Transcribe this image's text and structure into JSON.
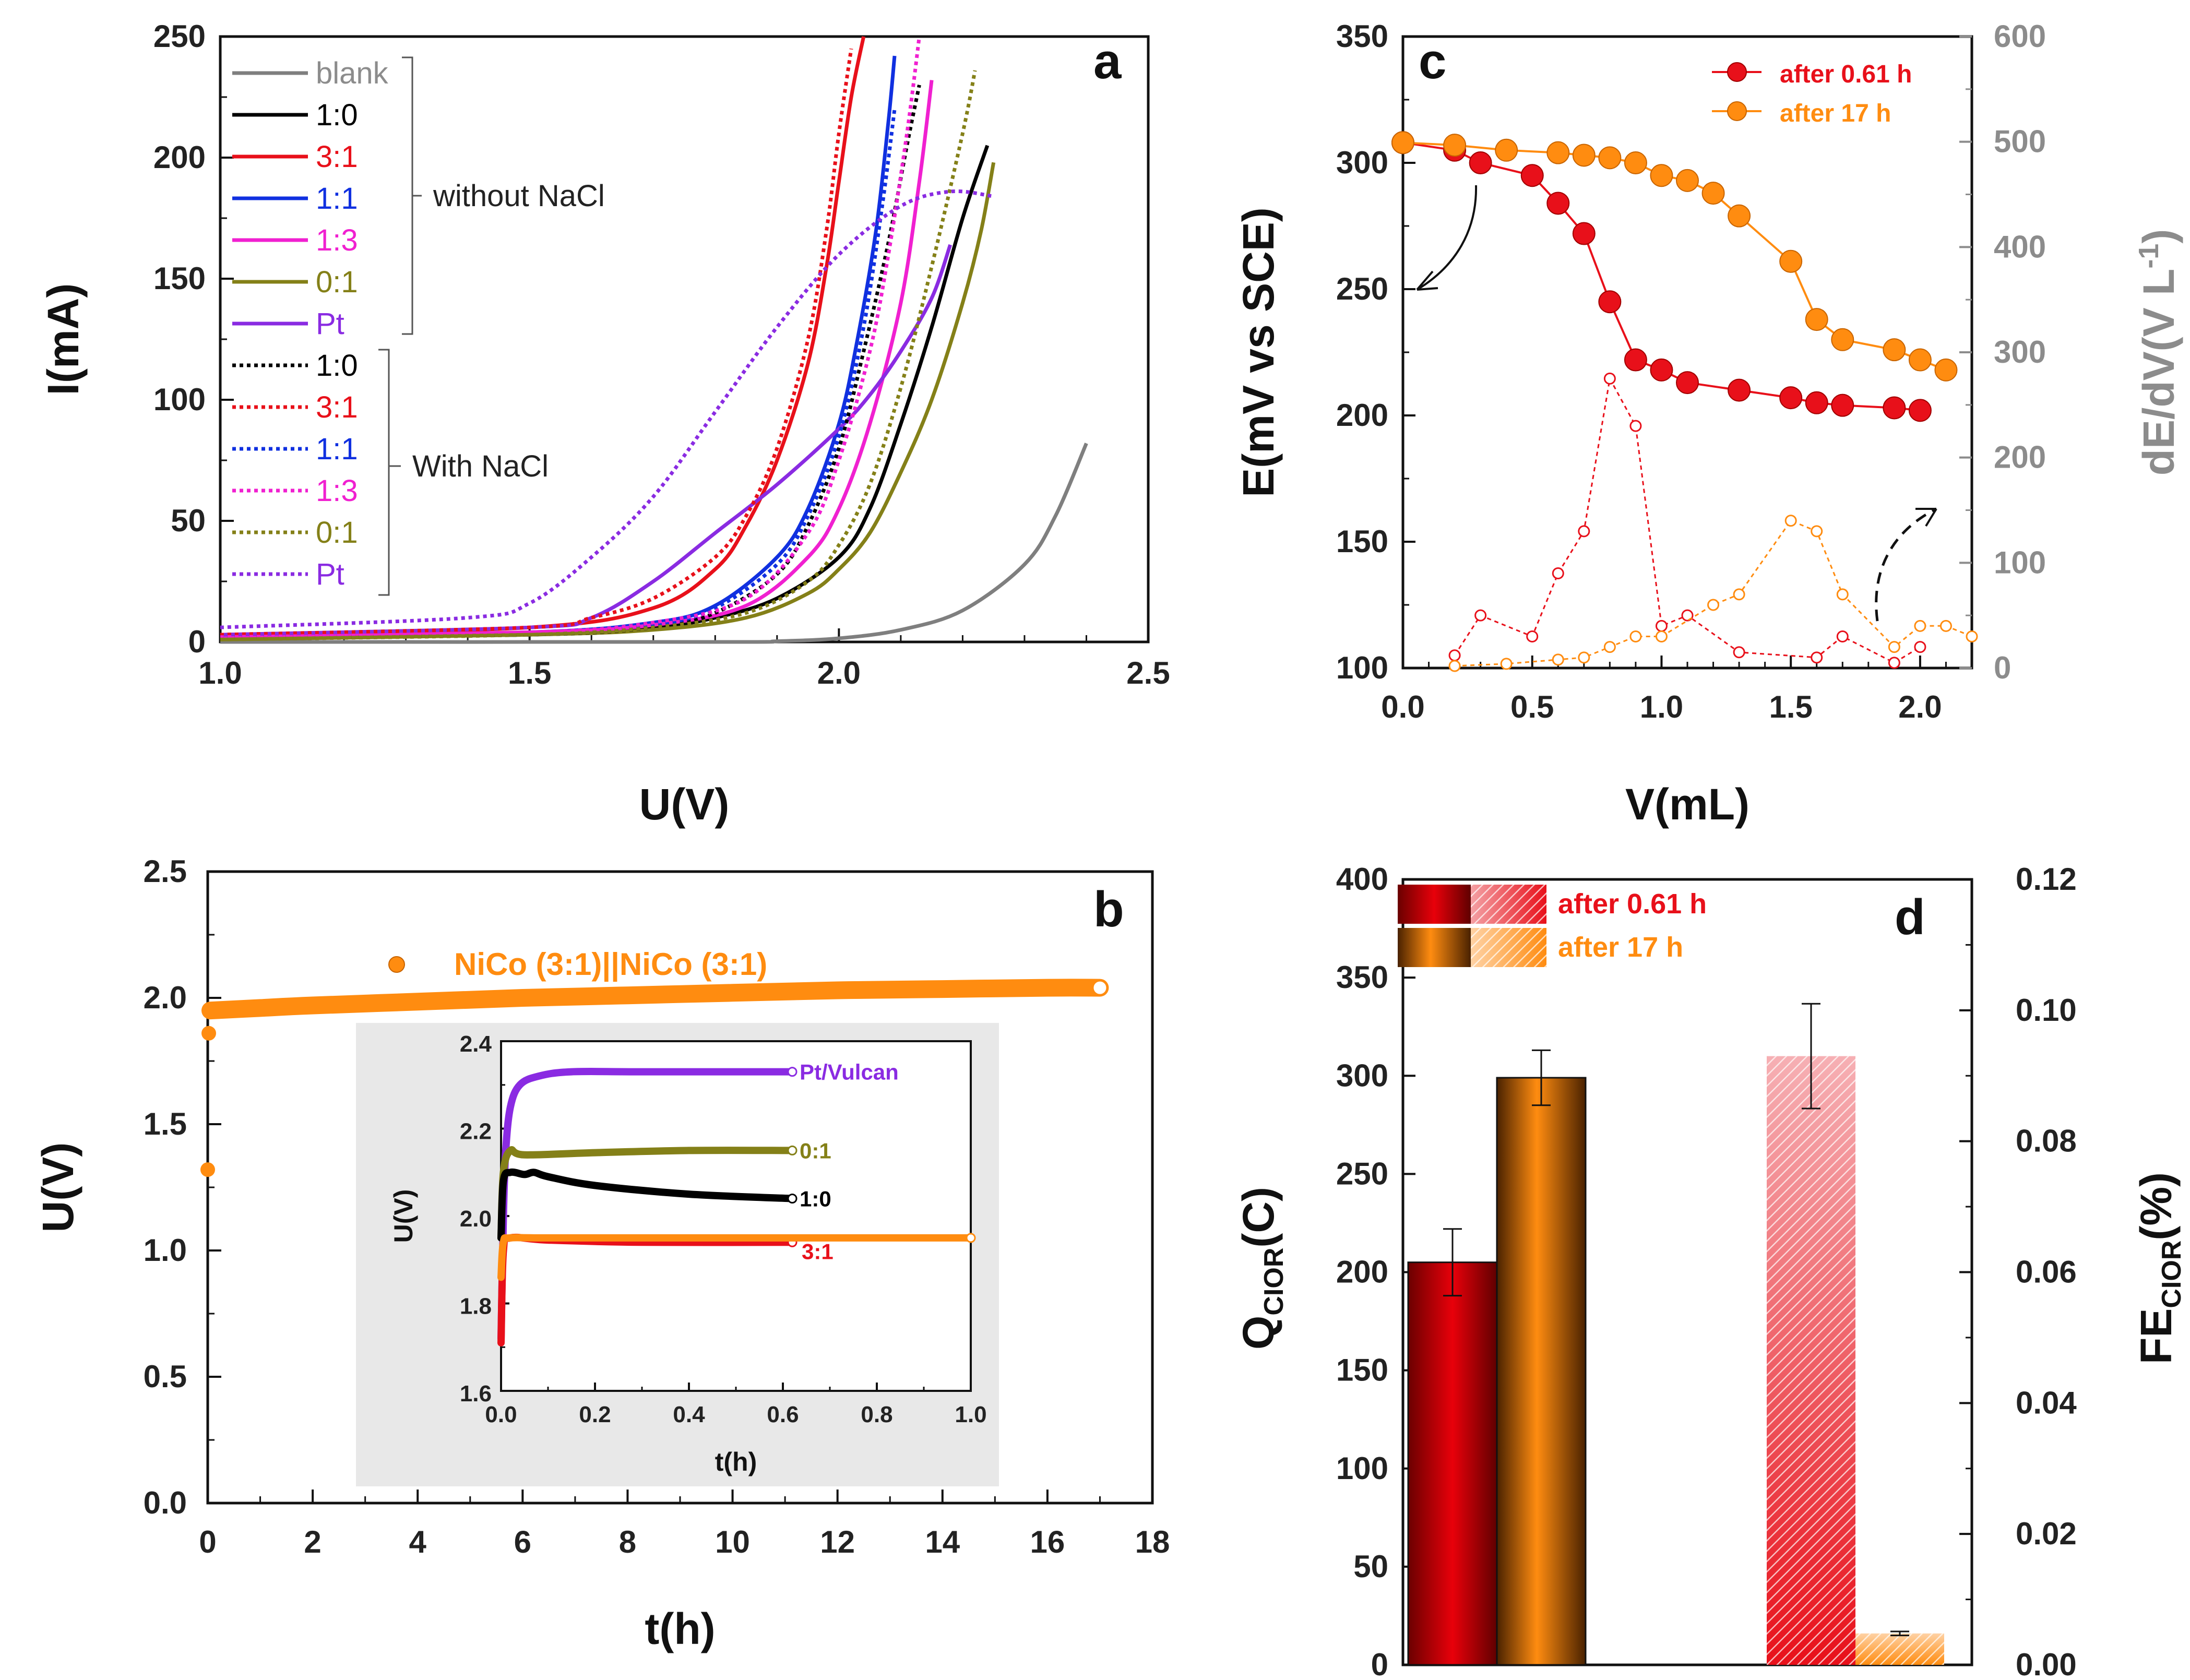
{
  "chart_data": [
    {
      "panel": "a",
      "type": "line",
      "xlabel": "U(V)",
      "ylabel": "I(mA)",
      "xlim": [
        1.0,
        2.5
      ],
      "ylim": [
        0,
        250
      ],
      "xticks": [
        "1.0",
        "1.5",
        "2.0",
        "2.5"
      ],
      "yticks": [
        "0",
        "50",
        "100",
        "150",
        "200",
        "250"
      ],
      "legend_groups": [
        {
          "label": "without NaCl",
          "style": "solid"
        },
        {
          "label": "With NaCl",
          "style": "dotted"
        }
      ],
      "series": [
        {
          "name": "blank",
          "style": "solid",
          "color": "#7f7f7f",
          "x": [
            1.0,
            1.8,
            1.9,
            2.0,
            2.1,
            2.2,
            2.3,
            2.35,
            2.4
          ],
          "y": [
            0,
            0,
            0.3,
            1.5,
            5,
            13,
            32,
            52,
            82
          ]
        },
        {
          "name": "1:0",
          "style": "solid",
          "color": "#000000",
          "x": [
            1.0,
            1.5,
            1.7,
            1.8,
            1.9,
            2.0,
            2.05,
            2.1,
            2.15,
            2.2,
            2.24
          ],
          "y": [
            2,
            3,
            6,
            10,
            18,
            35,
            55,
            90,
            130,
            175,
            205
          ]
        },
        {
          "name": "3:1",
          "style": "solid",
          "color": "#e8101a",
          "x": [
            1.0,
            1.5,
            1.7,
            1.8,
            1.85,
            1.9,
            1.95,
            1.98,
            2.0,
            2.02,
            2.04
          ],
          "y": [
            3,
            6,
            14,
            30,
            48,
            75,
            115,
            155,
            190,
            225,
            250
          ]
        },
        {
          "name": "1:1",
          "style": "solid",
          "color": "#1030e0",
          "x": [
            1.0,
            1.5,
            1.7,
            1.8,
            1.9,
            1.95,
            2.0,
            2.03,
            2.06,
            2.08,
            2.09
          ],
          "y": [
            2,
            4,
            8,
            15,
            35,
            55,
            90,
            125,
            170,
            215,
            242
          ]
        },
        {
          "name": "1:3",
          "style": "solid",
          "color": "#f020d0",
          "x": [
            1.0,
            1.5,
            1.7,
            1.85,
            1.95,
            2.0,
            2.05,
            2.1,
            2.13,
            2.15
          ],
          "y": [
            2,
            4,
            7,
            15,
            35,
            55,
            90,
            140,
            190,
            232
          ]
        },
        {
          "name": "0:1",
          "style": "solid",
          "color": "#848018",
          "x": [
            1.0,
            1.5,
            1.7,
            1.85,
            1.95,
            2.0,
            2.05,
            2.1,
            2.15,
            2.2,
            2.23,
            2.25
          ],
          "y": [
            1,
            3,
            5,
            10,
            20,
            30,
            45,
            70,
            100,
            140,
            170,
            198
          ]
        },
        {
          "name": "Pt",
          "style": "solid",
          "color": "#8a2be2",
          "x": [
            1.0,
            1.5,
            1.6,
            1.7,
            1.8,
            1.9,
            2.0,
            2.05,
            2.1,
            2.15,
            2.18
          ],
          "y": [
            3,
            6,
            10,
            25,
            45,
            65,
            88,
            102,
            120,
            142,
            164
          ]
        },
        {
          "name": "1:0",
          "style": "dotted",
          "color": "#000000",
          "x": [
            1.0,
            1.5,
            1.7,
            1.8,
            1.9,
            1.95,
            2.0,
            2.04,
            2.08,
            2.11,
            2.13
          ],
          "y": [
            2,
            3,
            6,
            12,
            28,
            48,
            80,
            120,
            165,
            205,
            230
          ]
        },
        {
          "name": "3:1",
          "style": "dotted",
          "color": "#e8101a",
          "x": [
            1.0,
            1.5,
            1.6,
            1.7,
            1.8,
            1.85,
            1.9,
            1.95,
            1.98,
            2.0,
            2.02
          ],
          "y": [
            3,
            6,
            10,
            18,
            35,
            52,
            80,
            125,
            170,
            210,
            245
          ]
        },
        {
          "name": "1:1",
          "style": "dotted",
          "color": "#1030e0",
          "x": [
            1.0,
            1.5,
            1.7,
            1.8,
            1.9,
            1.95,
            2.0,
            2.04,
            2.07,
            2.09
          ],
          "y": [
            2,
            3,
            7,
            14,
            32,
            52,
            85,
            130,
            180,
            220
          ]
        },
        {
          "name": "1:3",
          "style": "dotted",
          "color": "#f020d0",
          "x": [
            1.0,
            1.5,
            1.7,
            1.85,
            1.95,
            2.0,
            2.05,
            2.08,
            2.11,
            2.13
          ],
          "y": [
            2,
            4,
            8,
            18,
            45,
            75,
            120,
            160,
            210,
            250
          ]
        },
        {
          "name": "0:1",
          "style": "dotted",
          "color": "#848018",
          "x": [
            1.0,
            1.5,
            1.7,
            1.85,
            1.95,
            2.0,
            2.05,
            2.1,
            2.15,
            2.2,
            2.22
          ],
          "y": [
            1,
            3,
            6,
            12,
            25,
            40,
            65,
            105,
            155,
            210,
            236
          ]
        },
        {
          "name": "Pt",
          "style": "dotted",
          "color": "#8a2be2",
          "x": [
            1.0,
            1.4,
            1.5,
            1.6,
            1.7,
            1.8,
            1.9,
            2.0,
            2.1,
            2.18,
            2.25
          ],
          "y": [
            6,
            10,
            16,
            35,
            60,
            95,
            130,
            160,
            180,
            186,
            184
          ]
        }
      ]
    },
    {
      "panel": "b",
      "type": "scatter",
      "xlabel": "t(h)",
      "ylabel": "U(V)",
      "xlim": [
        0,
        18
      ],
      "ylim": [
        0.0,
        2.5
      ],
      "xticks": [
        "0",
        "2",
        "4",
        "6",
        "8",
        "10",
        "12",
        "14",
        "16",
        "18"
      ],
      "yticks": [
        "0.0",
        "0.5",
        "1.0",
        "1.5",
        "2.0",
        "2.5"
      ],
      "series": [
        {
          "name": "NiCo (3:1)||NiCo (3:1)",
          "color": "#ff8c10",
          "x": [
            0,
            0.02,
            0.05,
            1,
            2,
            4,
            6,
            8,
            10,
            12,
            14,
            16,
            17
          ],
          "y": [
            1.32,
            1.86,
            1.95,
            1.96,
            1.97,
            1.985,
            2.0,
            2.01,
            2.02,
            2.03,
            2.035,
            2.04,
            2.04
          ]
        }
      ],
      "inset": {
        "xlabel": "t(h)",
        "ylabel": "U(V)",
        "xlim": [
          0.0,
          1.0
        ],
        "ylim": [
          1.6,
          2.4
        ],
        "xticks": [
          "0.0",
          "0.2",
          "0.4",
          "0.6",
          "0.8",
          "1.0"
        ],
        "yticks": [
          "1.6",
          "1.8",
          "2.0",
          "2.2",
          "2.4"
        ],
        "series": [
          {
            "name": "Pt/Vulcan",
            "color": "#8a2be2",
            "x": [
              0,
              0.005,
              0.01,
              0.02,
              0.04,
              0.08,
              0.15,
              0.3,
              0.62
            ],
            "y": [
              1.72,
              2.0,
              2.15,
              2.25,
              2.3,
              2.32,
              2.33,
              2.33,
              2.33
            ]
          },
          {
            "name": "0:1",
            "color": "#848018",
            "x": [
              0,
              0.005,
              0.02,
              0.05,
              0.2,
              0.4,
              0.62
            ],
            "y": [
              1.95,
              2.1,
              2.15,
              2.14,
              2.145,
              2.15,
              2.15
            ]
          },
          {
            "name": "1:0",
            "color": "#000000",
            "x": [
              0,
              0.005,
              0.02,
              0.05,
              0.07,
              0.1,
              0.2,
              0.4,
              0.62
            ],
            "y": [
              1.95,
              2.08,
              2.1,
              2.095,
              2.1,
              2.09,
              2.07,
              2.05,
              2.04
            ]
          },
          {
            "name": "3:1",
            "color": "#e8101a",
            "x": [
              0,
              0.005,
              0.02,
              0.1,
              0.3,
              0.62
            ],
            "y": [
              1.71,
              1.92,
              1.95,
              1.945,
              1.94,
              1.94
            ]
          },
          {
            "name": "",
            "color": "#ff8c10",
            "x": [
              0,
              0.005,
              0.02,
              0.1,
              0.5,
              1.0
            ],
            "y": [
              1.86,
              1.94,
              1.95,
              1.95,
              1.95,
              1.95
            ]
          }
        ]
      }
    },
    {
      "panel": "c",
      "type": "line",
      "xlabel": "V(mL)",
      "ylabel": "E(mV vs SCE)",
      "ylabel2": "dE/dV(V L⁻¹)",
      "xlim": [
        0.0,
        2.2
      ],
      "ylim": [
        100,
        350
      ],
      "ylim2": [
        0,
        600
      ],
      "xticks": [
        "0.0",
        "0.5",
        "1.0",
        "1.5",
        "2.0"
      ],
      "yticks": [
        "100",
        "150",
        "200",
        "250",
        "300",
        "350"
      ],
      "yticks2": [
        "0",
        "100",
        "200",
        "300",
        "400",
        "500",
        "600"
      ],
      "series": [
        {
          "name": "after 0.61 h",
          "axis": "left",
          "color": "#e8101a",
          "x": [
            0.0,
            0.2,
            0.3,
            0.5,
            0.6,
            0.7,
            0.8,
            0.9,
            1.0,
            1.1,
            1.3,
            1.5,
            1.6,
            1.7,
            1.9,
            2.0
          ],
          "y": [
            308,
            305,
            300,
            295,
            284,
            272,
            245,
            222,
            218,
            213,
            210,
            207,
            205,
            204,
            203,
            202
          ]
        },
        {
          "name": "after 17 h",
          "axis": "left",
          "color": "#ff8c10",
          "x": [
            0.0,
            0.2,
            0.4,
            0.6,
            0.7,
            0.8,
            0.9,
            1.0,
            1.1,
            1.2,
            1.3,
            1.5,
            1.6,
            1.7,
            1.9,
            2.0,
            2.1
          ],
          "y": [
            308,
            307,
            305,
            304,
            303,
            302,
            300,
            295,
            293,
            288,
            279,
            261,
            238,
            230,
            226,
            222,
            218
          ]
        },
        {
          "name": "dE/dV after 0.61 h",
          "axis": "right",
          "color": "#e8101a",
          "x": [
            0.2,
            0.3,
            0.5,
            0.6,
            0.7,
            0.8,
            0.9,
            1.0,
            1.1,
            1.3,
            1.6,
            1.7,
            1.9,
            2.0
          ],
          "y": [
            12,
            50,
            30,
            90,
            130,
            275,
            230,
            40,
            50,
            15,
            10,
            30,
            5,
            20
          ]
        },
        {
          "name": "dE/dV after 17 h",
          "axis": "right",
          "color": "#ff8c10",
          "x": [
            0.2,
            0.4,
            0.6,
            0.7,
            0.8,
            0.9,
            1.0,
            1.2,
            1.3,
            1.5,
            1.6,
            1.7,
            1.9,
            2.0,
            2.1,
            2.2
          ],
          "y": [
            2,
            4,
            8,
            10,
            20,
            30,
            30,
            60,
            70,
            140,
            130,
            70,
            20,
            40,
            40,
            30
          ]
        }
      ]
    },
    {
      "panel": "d",
      "type": "bar",
      "ylabel": "Q_CIOR(C)",
      "ylabel2": "FE_CIOR(%)",
      "ylim": [
        0,
        400
      ],
      "ylim2": [
        0,
        0.12
      ],
      "yticks": [
        "0",
        "50",
        "100",
        "150",
        "200",
        "250",
        "300",
        "350",
        "400"
      ],
      "yticks2": [
        "0.00",
        "0.02",
        "0.04",
        "0.06",
        "0.08",
        "0.10",
        "0.12"
      ],
      "series": [
        {
          "name": "after 0.61 h",
          "color": "#e8101a",
          "Q": 205,
          "Q_err": 17,
          "FE": 0.093,
          "FE_err": 0.008
        },
        {
          "name": "after 17 h",
          "color": "#ff8c10",
          "Q": 299,
          "Q_err": 14,
          "FE": 0.0048,
          "FE_err": 0.0003
        }
      ]
    }
  ],
  "labels": {
    "a": {
      "letter": "a",
      "xlabel": "U(V)",
      "ylabel": "I(mA)",
      "legend": [
        {
          "label": "blank",
          "color": "#7f7f7f"
        },
        {
          "label": "1:0",
          "color": "#000000"
        },
        {
          "label": "3:1",
          "color": "#e8101a"
        },
        {
          "label": "1:1",
          "color": "#1030e0"
        },
        {
          "label": "1:3",
          "color": "#f020d0"
        },
        {
          "label": "0:1",
          "color": "#848018"
        },
        {
          "label": "Pt",
          "color": "#8a2be2"
        },
        {
          "label": "1:0",
          "color": "#000000"
        },
        {
          "label": "3:1",
          "color": "#e8101a"
        },
        {
          "label": "1:1",
          "color": "#1030e0"
        },
        {
          "label": "1:3",
          "color": "#f020d0"
        },
        {
          "label": "0:1",
          "color": "#848018"
        },
        {
          "label": "Pt",
          "color": "#8a2be2"
        }
      ],
      "group_without": "without NaCl",
      "group_with": "With NaCl"
    },
    "b": {
      "letter": "b",
      "xlabel": "t(h)",
      "ylabel": "U(V)",
      "legend": "NiCo (3:1)||NiCo (3:1)",
      "inset_xlabel": "t(h)",
      "inset_ylabel": "U(V)"
    },
    "c": {
      "letter": "c",
      "xlabel": "V(mL)",
      "ylabel": "E(mV vs SCE)",
      "ylabel2_main": "dE/dV(V L",
      "ylabel2_sup": "-1",
      "ylabel2_close": ")",
      "legend": [
        "after 0.61 h",
        "after 17 h"
      ]
    },
    "d": {
      "letter": "d",
      "ylabel_main": "Q",
      "ylabel_sub": "CIOR",
      "ylabel_tail": "(C)",
      "ylabel2_main": "FE",
      "ylabel2_sub": "CIOR",
      "ylabel2_tail": "(%)",
      "legend": [
        "after 0.61 h",
        "after 17 h"
      ]
    }
  }
}
